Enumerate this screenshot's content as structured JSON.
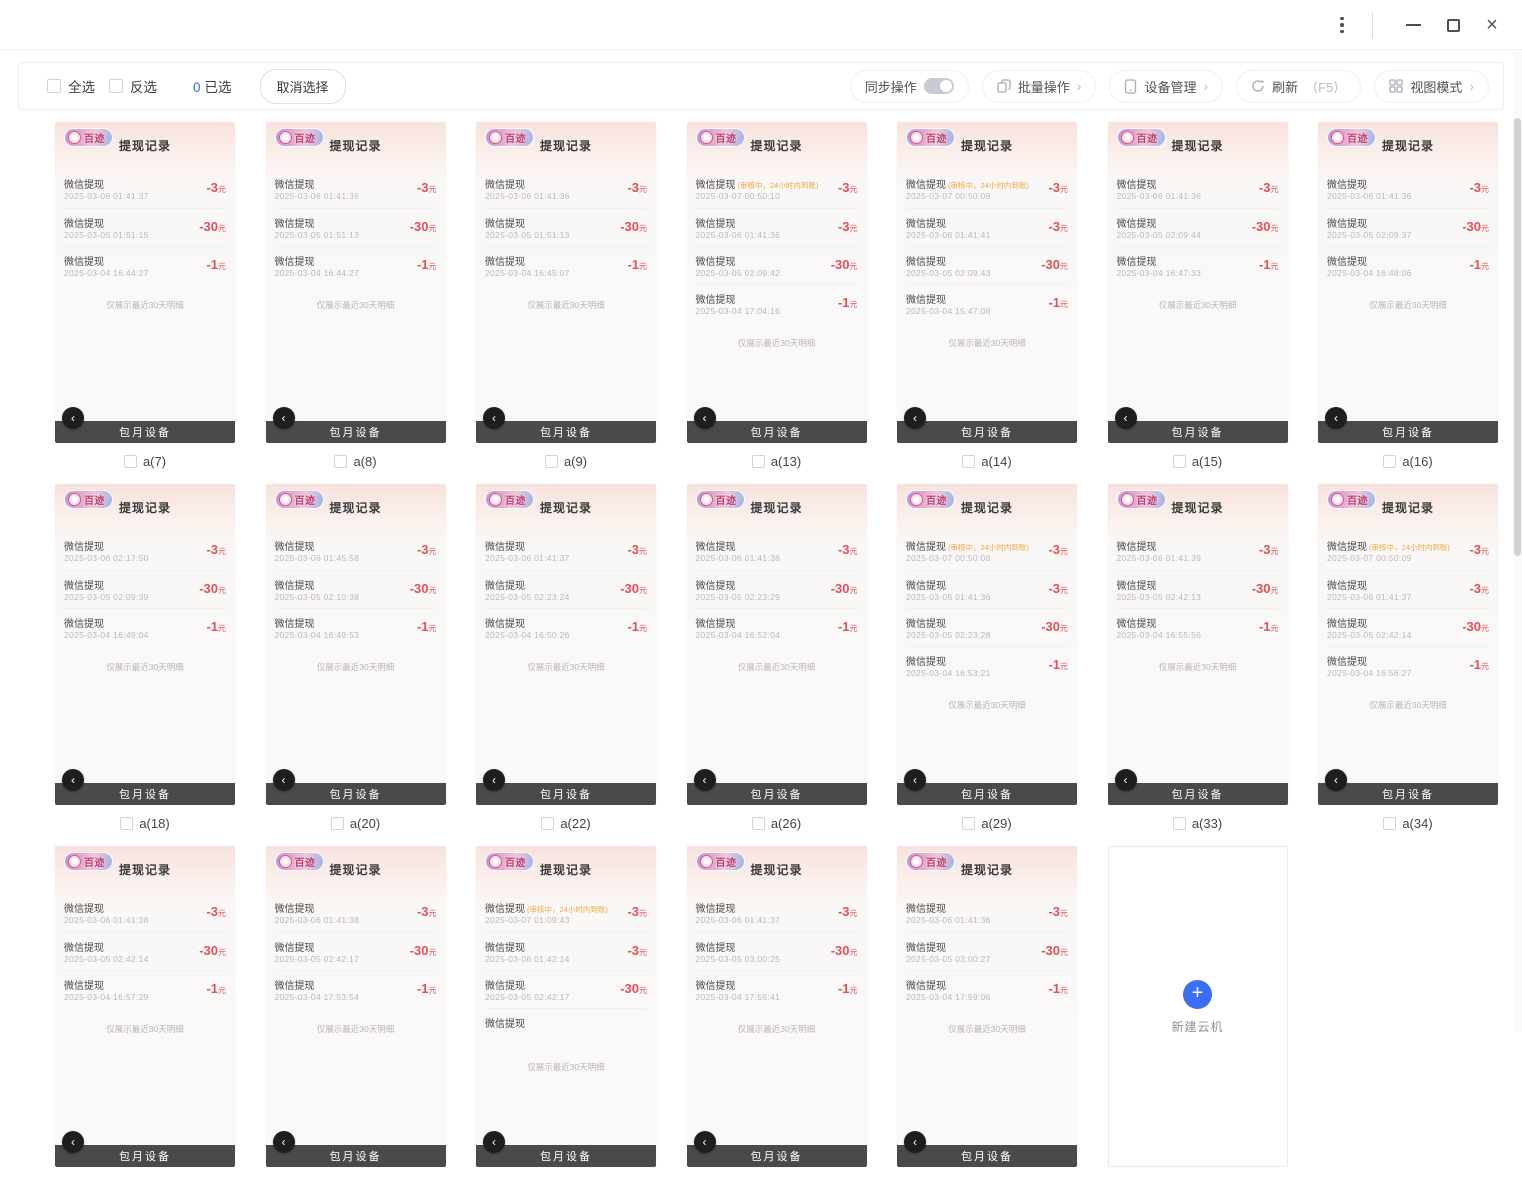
{
  "window": {
    "controls": {
      "menu": "kebab-menu",
      "minimize": "minimize",
      "maximize": "maximize",
      "close": "×"
    }
  },
  "toolbar": {
    "select_all": "全选",
    "invert_select": "反选",
    "selected_count": "0",
    "selected_label": "已选",
    "cancel_selection": "取消选择",
    "sync_label": "同步操作",
    "batch_label": "批量操作",
    "device_mgmt_label": "设备管理",
    "refresh_label": "刷新",
    "refresh_key": "（F5）",
    "view_mode_label": "视图模式",
    "chevron": "›"
  },
  "phone": {
    "brand": "百迹",
    "title": "提现记录",
    "entry_title": "微信提现",
    "pending_note": "(审核中，24小时内到账)",
    "currency": "元",
    "footer": "包月设备",
    "note": "仅展示最近30天明细",
    "back_glyph": "‹"
  },
  "add_card": {
    "plus": "+",
    "label": "新建云机"
  },
  "colors": {
    "amount_red": "#e25059",
    "pending_orange": "#f0a43e",
    "accent_blue": "#2d6cf6",
    "brand_pink": "#c03a6e"
  },
  "grid": {
    "rows": [
      [
        {
          "label": "a(7)",
          "entries": [
            {
              "date": "2025-03-06 01:41:37",
              "amount": "-3"
            },
            {
              "date": "2025-03-05 01:51:15",
              "amount": "-30"
            },
            {
              "date": "2025-03-04 16:44:27",
              "amount": "-1"
            }
          ]
        },
        {
          "label": "a(8)",
          "entries": [
            {
              "date": "2025-03-06 01:41:36",
              "amount": "-3"
            },
            {
              "date": "2025-03-05 01:51:13",
              "amount": "-30"
            },
            {
              "date": "2025-03-04 16:44:27",
              "amount": "-1"
            }
          ]
        },
        {
          "label": "a(9)",
          "entries": [
            {
              "date": "2025-03-06 01:41:36",
              "amount": "-3"
            },
            {
              "date": "2025-03-05 01:51:13",
              "amount": "-30"
            },
            {
              "date": "2025-03-04 16:45:07",
              "amount": "-1"
            }
          ]
        },
        {
          "label": "a(13)",
          "entries": [
            {
              "date": "2025-03-07 00:50:10",
              "amount": "-3",
              "pending": true
            },
            {
              "date": "2025-03-06 01:41:36",
              "amount": "-3"
            },
            {
              "date": "2025-03-05 02:09:42",
              "amount": "-30"
            },
            {
              "date": "2025-03-04 17:04:16",
              "amount": "-1"
            }
          ]
        },
        {
          "label": "a(14)",
          "entries": [
            {
              "date": "2025-03-07 00:50:09",
              "amount": "-3",
              "pending": true
            },
            {
              "date": "2025-03-06 01:41:41",
              "amount": "-3"
            },
            {
              "date": "2025-03-05 02:09:43",
              "amount": "-30"
            },
            {
              "date": "2025-03-04 15:47:08",
              "amount": "-1"
            }
          ]
        },
        {
          "label": "a(15)",
          "entries": [
            {
              "date": "2025-03-06 01:41:36",
              "amount": "-3"
            },
            {
              "date": "2025-03-05 02:09:44",
              "amount": "-30"
            },
            {
              "date": "2025-03-04 16:47:33",
              "amount": "-1"
            }
          ]
        },
        {
          "label": "a(16)",
          "entries": [
            {
              "date": "2025-03-06 01:41:36",
              "amount": "-3"
            },
            {
              "date": "2025-03-05 02:09:37",
              "amount": "-30"
            },
            {
              "date": "2025-03-04 16:48:06",
              "amount": "-1"
            }
          ]
        }
      ],
      [
        {
          "label": "a(18)",
          "entries": [
            {
              "date": "2025-03-06 02:17:50",
              "amount": "-3"
            },
            {
              "date": "2025-03-05 02:09:39",
              "amount": "-30"
            },
            {
              "date": "2025-03-04 16:49:04",
              "amount": "-1"
            }
          ]
        },
        {
          "label": "a(20)",
          "entries": [
            {
              "date": "2025-03-06 01:45:58",
              "amount": "-3"
            },
            {
              "date": "2025-03-05 02:10:38",
              "amount": "-30"
            },
            {
              "date": "2025-03-04 16:49:53",
              "amount": "-1"
            }
          ]
        },
        {
          "label": "a(22)",
          "entries": [
            {
              "date": "2025-03-06 01:41:37",
              "amount": "-3"
            },
            {
              "date": "2025-03-05 02:23:24",
              "amount": "-30"
            },
            {
              "date": "2025-03-04 16:50:26",
              "amount": "-1"
            }
          ]
        },
        {
          "label": "a(26)",
          "entries": [
            {
              "date": "2025-03-06 01:41:36",
              "amount": "-3"
            },
            {
              "date": "2025-03-05 02:23:29",
              "amount": "-30"
            },
            {
              "date": "2025-03-04 16:52:04",
              "amount": "-1"
            }
          ]
        },
        {
          "label": "a(29)",
          "entries": [
            {
              "date": "2025-03-07 00:50:08",
              "amount": "-3",
              "pending": true
            },
            {
              "date": "2025-03-06 01:41:36",
              "amount": "-3"
            },
            {
              "date": "2025-03-05 02:23:28",
              "amount": "-30"
            },
            {
              "date": "2025-03-04 16:53:21",
              "amount": "-1"
            }
          ]
        },
        {
          "label": "a(33)",
          "entries": [
            {
              "date": "2025-03-06 01:41:39",
              "amount": "-3"
            },
            {
              "date": "2025-03-05 02:42:13",
              "amount": "-30"
            },
            {
              "date": "2025-03-04 16:55:56",
              "amount": "-1"
            }
          ]
        },
        {
          "label": "a(34)",
          "entries": [
            {
              "date": "2025-03-07 00:50:09",
              "amount": "-3",
              "pending": true
            },
            {
              "date": "2025-03-06 01:41:37",
              "amount": "-3"
            },
            {
              "date": "2025-03-05 02:42:14",
              "amount": "-30"
            },
            {
              "date": "2025-03-04 16:56:27",
              "amount": "-1"
            }
          ]
        }
      ],
      [
        {
          "label": "",
          "entries": [
            {
              "date": "2025-03-06 01:41:38",
              "amount": "-3"
            },
            {
              "date": "2025-03-05 02:42:14",
              "amount": "-30"
            },
            {
              "date": "2025-03-04 16:57:29",
              "amount": "-1"
            }
          ]
        },
        {
          "label": "",
          "entries": [
            {
              "date": "2025-03-06 01:41:38",
              "amount": "-3"
            },
            {
              "date": "2025-03-05 02:42:17",
              "amount": "-30"
            },
            {
              "date": "2025-03-04 17:53:54",
              "amount": "-1"
            }
          ]
        },
        {
          "label": "",
          "entries": [
            {
              "date": "2025-03-07 01:09:43",
              "amount": "-3",
              "pending": true
            },
            {
              "date": "2025-03-06 01:42:14",
              "amount": "-3"
            },
            {
              "date": "2025-03-05 02:42:17",
              "amount": "-30"
            },
            {
              "date": "",
              "amount": ""
            }
          ]
        },
        {
          "label": "",
          "entries": [
            {
              "date": "2025-03-06 01:41:37",
              "amount": "-3"
            },
            {
              "date": "2025-03-05 03:00:25",
              "amount": "-30"
            },
            {
              "date": "2025-03-04 17:56:41",
              "amount": "-1"
            }
          ]
        },
        {
          "label": "",
          "entries": [
            {
              "date": "2025-03-06 01:41:36",
              "amount": "-3"
            },
            {
              "date": "2025-03-05 03:00:27",
              "amount": "-30"
            },
            {
              "date": "2025-03-04 17:59:06",
              "amount": "-1"
            }
          ]
        },
        {
          "add": true
        }
      ]
    ]
  }
}
